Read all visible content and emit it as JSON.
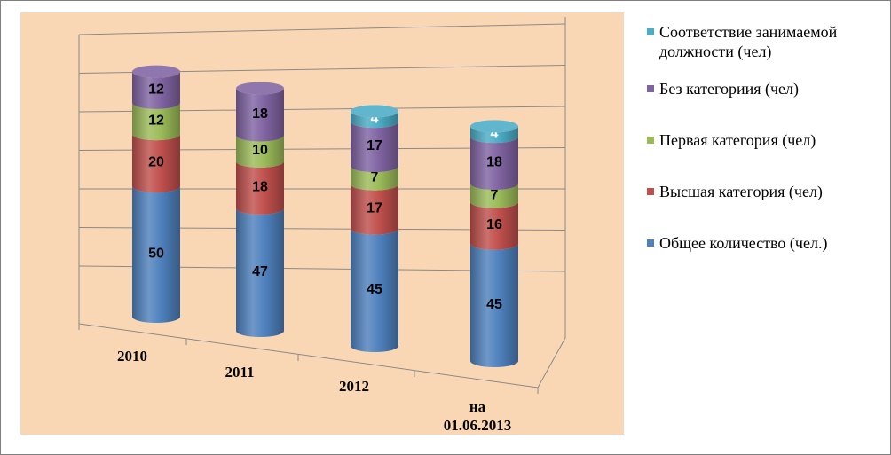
{
  "chart_data": {
    "type": "bar",
    "stacked": true,
    "three_d": true,
    "categories": [
      "2010",
      "2011",
      "2012",
      "на\n01.06.2013"
    ],
    "series": [
      {
        "name": "Общее количество (чел.)",
        "values": [
          50,
          47,
          45,
          45
        ],
        "color": "#4f81bd"
      },
      {
        "name": "Высшая категория (чел)",
        "values": [
          20,
          18,
          17,
          16
        ],
        "color": "#c0504d"
      },
      {
        "name": "Первая категория (чел)",
        "values": [
          12,
          10,
          7,
          7
        ],
        "color": "#9bbb59"
      },
      {
        "name": "Без категориия (чел)",
        "values": [
          12,
          18,
          17,
          18
        ],
        "color": "#8064a2"
      },
      {
        "name": "Соответствие занимаемой должности (чел)",
        "values": [
          null,
          null,
          4,
          4
        ],
        "color": "#4bacc6"
      }
    ],
    "legend_position": "right",
    "grid": true,
    "background": "#fad7b4"
  }
}
